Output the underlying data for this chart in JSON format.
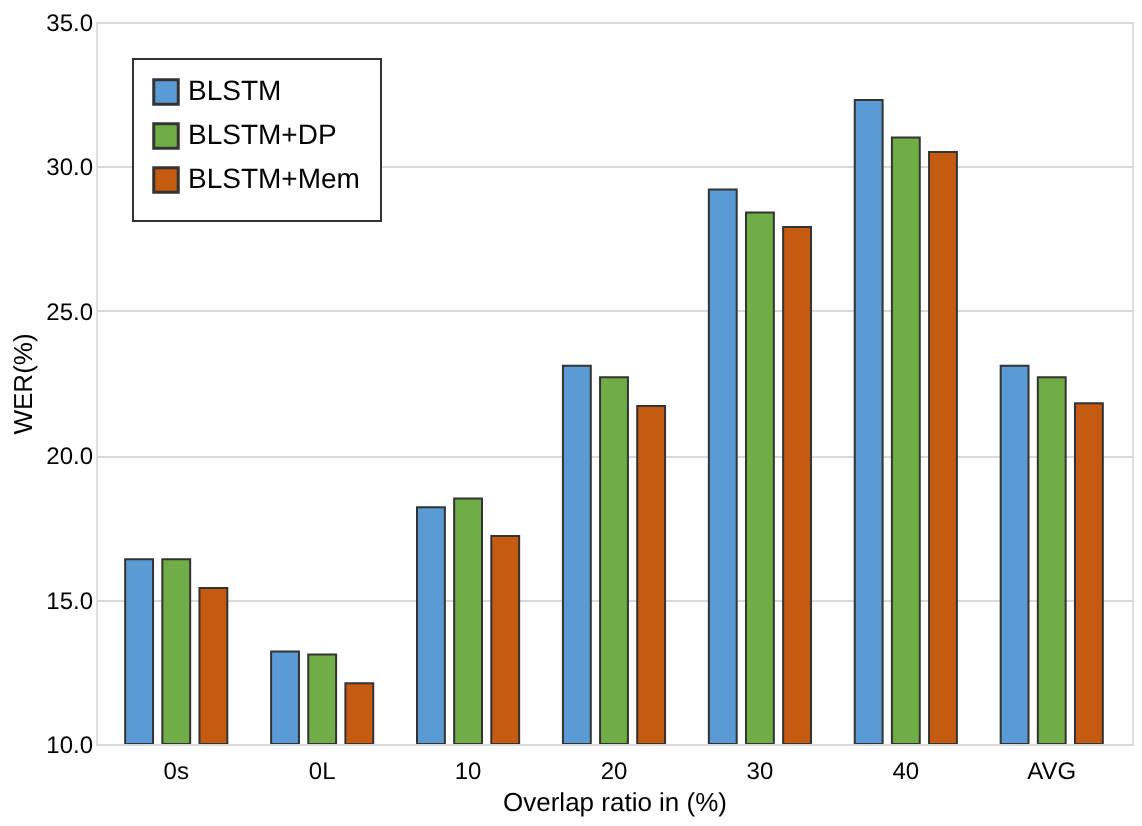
{
  "chart_data": {
    "type": "bar",
    "xlabel": "Overlap ratio in (%)",
    "ylabel": "WER(%)",
    "categories": [
      "0s",
      "0L",
      "10",
      "20",
      "30",
      "40",
      "AVG"
    ],
    "series": [
      {
        "name": "BLSTM",
        "color": "#5b9bd5",
        "values": [
          16.4,
          13.2,
          18.2,
          23.1,
          29.2,
          32.3,
          23.1
        ]
      },
      {
        "name": "BLSTM+DP",
        "color": "#70ad47",
        "values": [
          16.4,
          13.1,
          18.5,
          22.7,
          28.4,
          31.0,
          22.7
        ]
      },
      {
        "name": "BLSTM+Mem",
        "color": "#c55a11",
        "values": [
          15.4,
          12.1,
          17.2,
          21.7,
          27.9,
          30.5,
          21.8
        ]
      }
    ],
    "ylim": [
      10.0,
      35.0
    ],
    "yticks": [
      {
        "value": 10,
        "label": "10.0"
      },
      {
        "value": 15,
        "label": "15.0"
      },
      {
        "value": 20,
        "label": "20.0"
      },
      {
        "value": 25,
        "label": "25.0"
      },
      {
        "value": 30,
        "label": "30.0"
      },
      {
        "value": 35,
        "label": "35.0"
      }
    ],
    "grid": "y",
    "legend": "top left"
  }
}
